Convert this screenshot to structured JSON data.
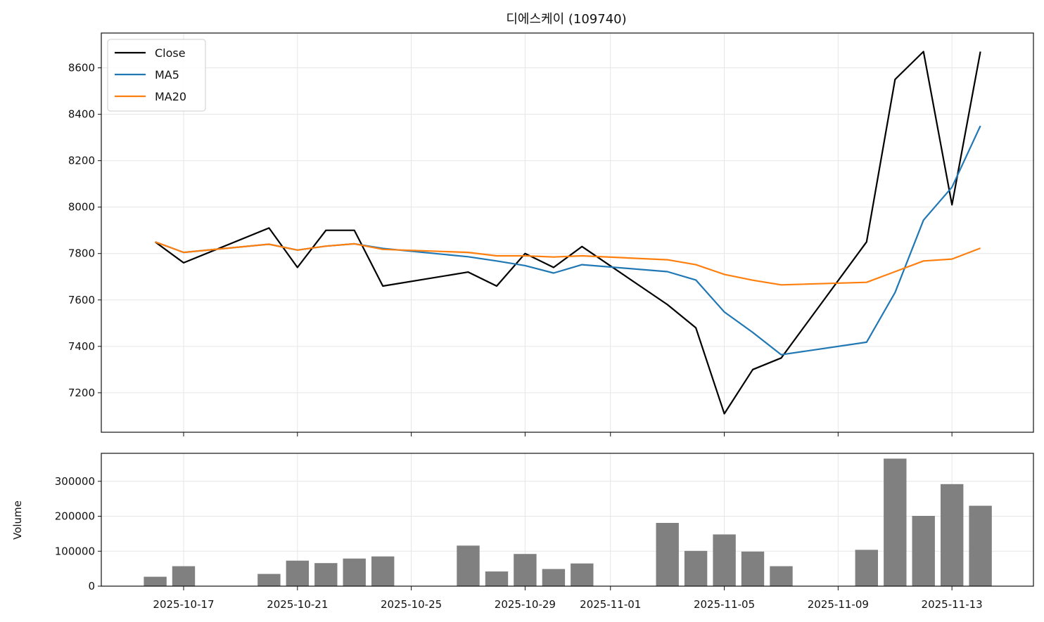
{
  "chart_data": {
    "type": "line",
    "title": "디에스케이 (109740)",
    "dates": [
      "2025-10-16",
      "2025-10-17",
      "2025-10-20",
      "2025-10-21",
      "2025-10-22",
      "2025-10-23",
      "2025-10-24",
      "2025-10-27",
      "2025-10-28",
      "2025-10-29",
      "2025-10-30",
      "2025-10-31",
      "2025-11-03",
      "2025-11-04",
      "2025-11-05",
      "2025-11-06",
      "2025-11-07",
      "2025-11-10",
      "2025-11-11",
      "2025-11-12",
      "2025-11-13",
      "2025-11-14"
    ],
    "price_panel": {
      "ylim": [
        7030,
        8750
      ],
      "yticks": [
        7200,
        7400,
        7600,
        7800,
        8000,
        8200,
        8400,
        8600
      ],
      "grid": true,
      "legend": "top-left",
      "series": [
        {
          "name": "Close",
          "color": "#000000",
          "values": [
            7850,
            7760,
            7910,
            7740,
            7900,
            7900,
            7660,
            7720,
            7660,
            7800,
            7740,
            7830,
            7580,
            7480,
            7110,
            7300,
            7350,
            7850,
            8550,
            8670,
            8010,
            8670
          ]
        },
        {
          "name": "MA5",
          "color": "#1f77b4",
          "values": [
            7850,
            7805,
            7840,
            7815,
            7832,
            7842,
            7822,
            7786,
            7768,
            7748,
            7716,
            7752,
            7722,
            7686,
            7548,
            7460,
            7364,
            7418,
            7632,
            7944,
            8086,
            8350
          ]
        },
        {
          "name": "MA20",
          "color": "#ff7f0e",
          "values": [
            7850,
            7805,
            7840,
            7815,
            7832,
            7842,
            7818,
            7805,
            7790,
            7790,
            7785,
            7790,
            7773,
            7752,
            7710,
            7685,
            7665,
            7676,
            7722,
            7768,
            7776,
            7823
          ]
        }
      ]
    },
    "volume_panel": {
      "ylabel": "Volume",
      "ylim": [
        0,
        380000
      ],
      "yticks": [
        0,
        100000,
        200000,
        300000
      ],
      "grid": true,
      "color": "#808080",
      "values": [
        27000,
        57000,
        35000,
        73000,
        66000,
        79000,
        85000,
        116000,
        42000,
        92000,
        49000,
        65000,
        181000,
        101000,
        148000,
        99000,
        57000,
        104000,
        365000,
        201000,
        292000,
        230000
      ]
    },
    "xticks": [
      "2025-10-17",
      "2025-10-21",
      "2025-10-25",
      "2025-10-29",
      "2025-11-01",
      "2025-11-05",
      "2025-11-09",
      "2025-11-13"
    ]
  }
}
